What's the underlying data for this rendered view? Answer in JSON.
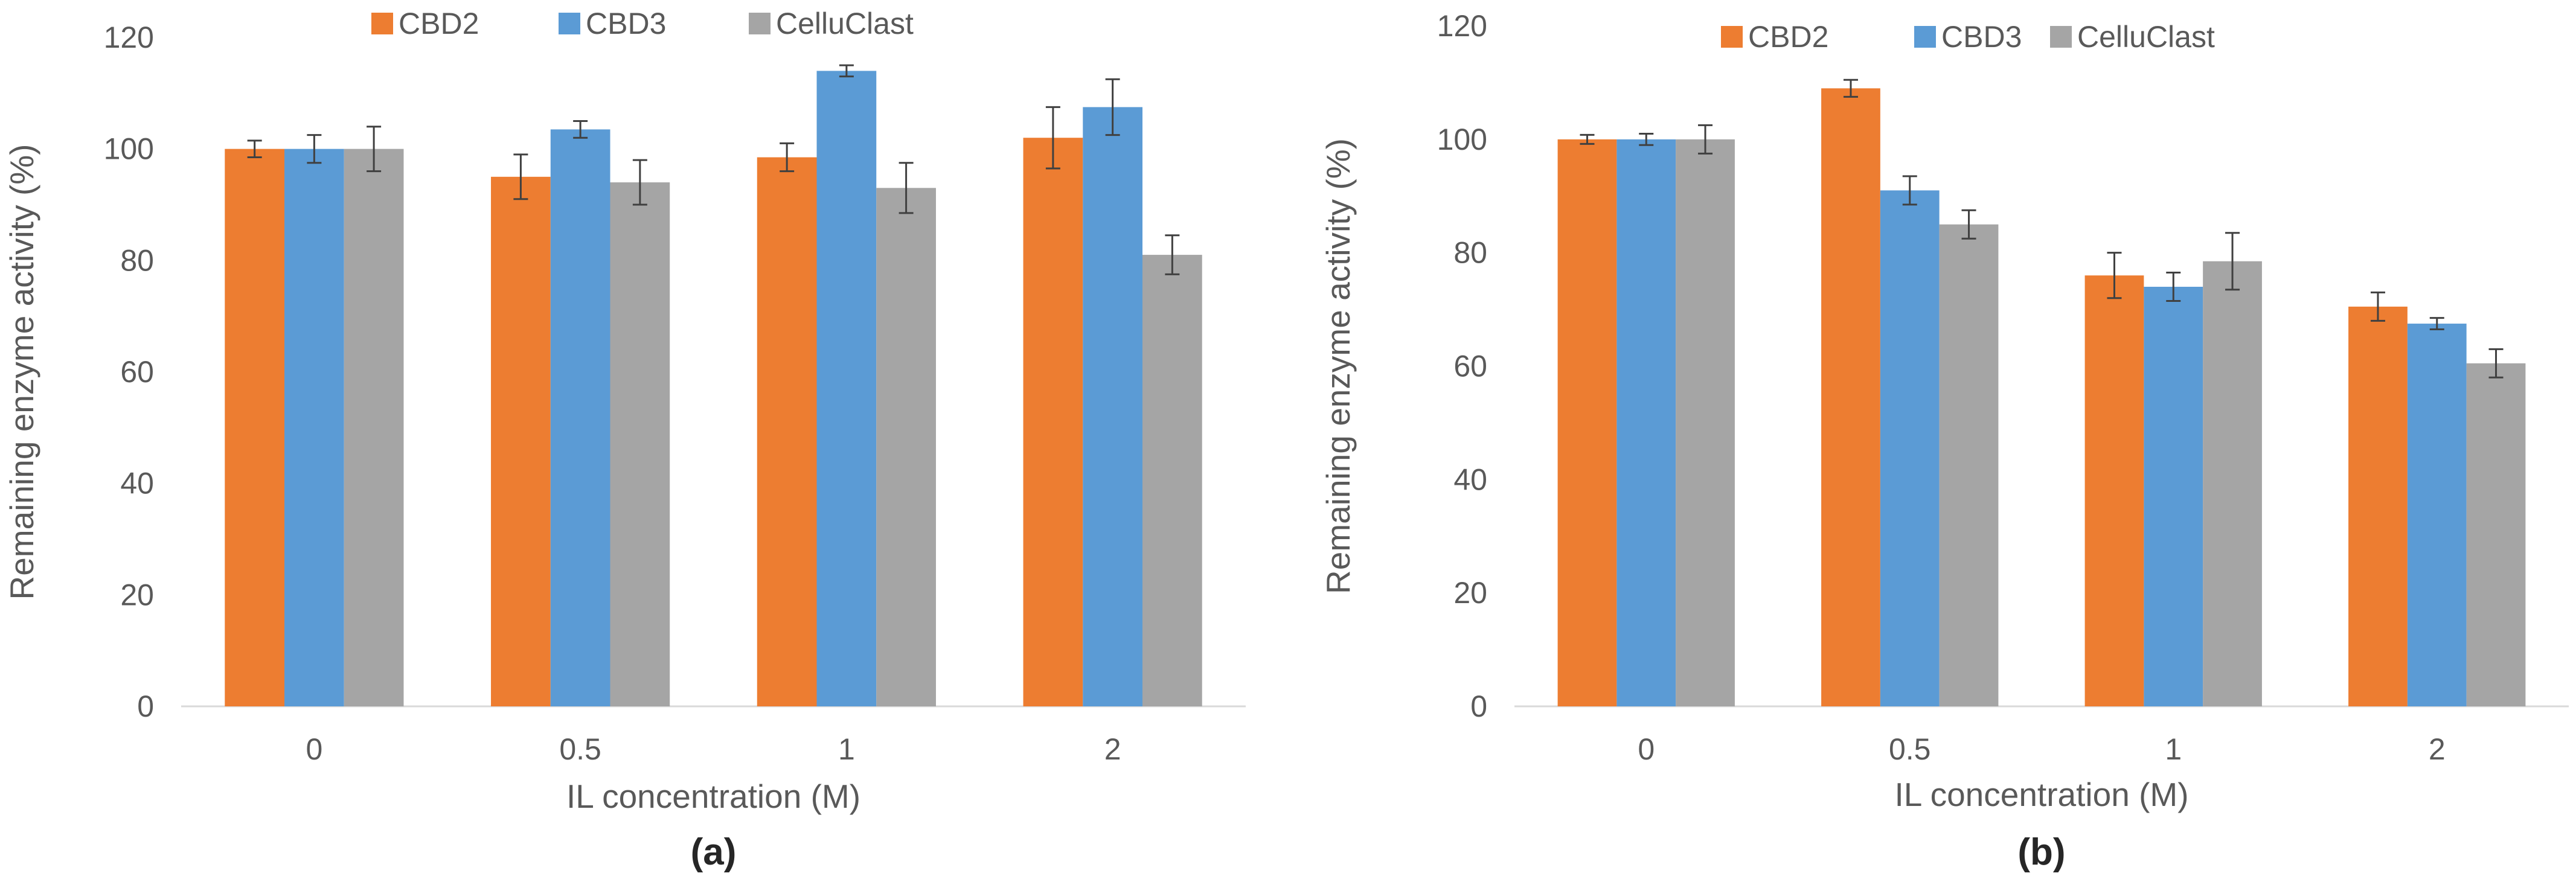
{
  "colors": {
    "CBD2": "#ED7D31",
    "CBD3": "#5B9BD5",
    "CelluClast": "#A5A5A5",
    "axis": "#D9D9D9",
    "error_bar": "#404040"
  },
  "chart_data": [
    {
      "type": "bar",
      "panel_label": "(a)",
      "title": "",
      "xlabel": "IL concentration (M)",
      "ylabel": "Remaining enzyme activity (%)",
      "ylim": [
        0,
        120
      ],
      "yticks": [
        "0",
        "20",
        "40",
        "60",
        "80",
        "100",
        "120"
      ],
      "grid": false,
      "legend_position": "top",
      "categories": [
        "0",
        "0.5",
        "1",
        "2"
      ],
      "series": [
        {
          "name": "CBD2",
          "values": [
            100,
            95,
            98.5,
            102
          ],
          "errors": [
            1.5,
            4,
            2.5,
            5.5
          ]
        },
        {
          "name": "CBD3",
          "values": [
            100,
            103.5,
            114,
            107.5
          ],
          "errors": [
            2.5,
            1.5,
            1,
            5
          ]
        },
        {
          "name": "CelluClast",
          "values": [
            100,
            94,
            93,
            81
          ],
          "errors": [
            4,
            4,
            4.5,
            3.5
          ]
        }
      ]
    },
    {
      "type": "bar",
      "panel_label": "(b)",
      "title": "",
      "xlabel": "IL concentration (M)",
      "ylabel": "Remaining enzyme activity (%)",
      "ylim": [
        0,
        120
      ],
      "yticks": [
        "0",
        "20",
        "40",
        "60",
        "80",
        "100",
        "120"
      ],
      "grid": false,
      "legend_position": "top",
      "categories": [
        "0",
        "0.5",
        "1",
        "2"
      ],
      "series": [
        {
          "name": "CBD2",
          "values": [
            100,
            109,
            76,
            70.5
          ],
          "errors": [
            0.8,
            1.5,
            4,
            2.5
          ]
        },
        {
          "name": "CBD3",
          "values": [
            100,
            91,
            74,
            67.5
          ],
          "errors": [
            1,
            2.5,
            2.5,
            1
          ]
        },
        {
          "name": "CelluClast",
          "values": [
            100,
            85,
            78.5,
            60.5
          ],
          "errors": [
            2.5,
            2.5,
            5,
            2.5
          ]
        }
      ]
    }
  ]
}
